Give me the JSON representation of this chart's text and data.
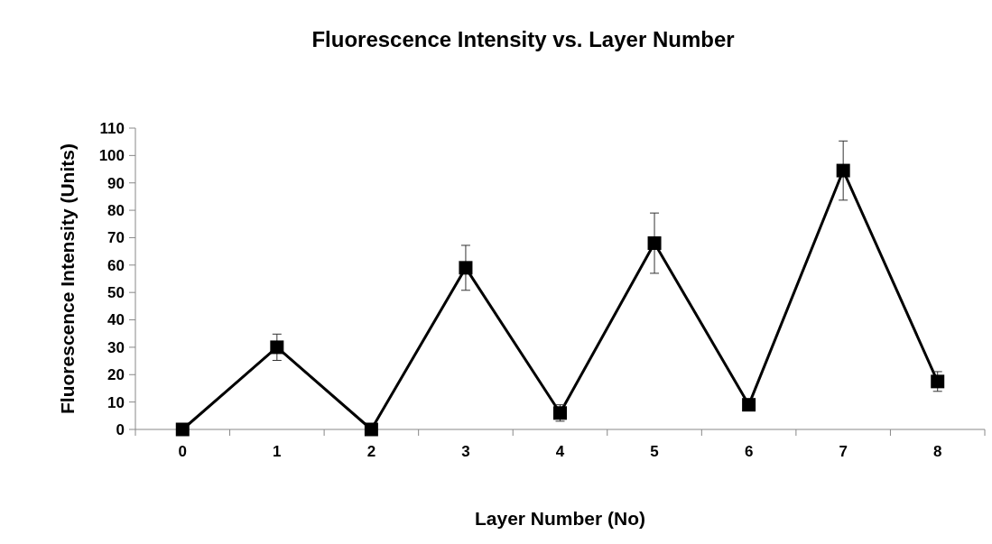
{
  "chart_data": {
    "type": "line",
    "title": "Fluorescence Intensity vs. Layer Number",
    "xlabel": "Layer Number (No)",
    "ylabel": "Fluorescence Intensity (Units)",
    "categories": [
      "0",
      "1",
      "2",
      "3",
      "4",
      "5",
      "6",
      "7",
      "8"
    ],
    "series": [
      {
        "color": "#000000",
        "values": [
          0,
          30,
          0,
          59,
          6,
          68,
          9,
          94.5,
          17.5
        ],
        "errors": [
          null,
          4.8,
          null,
          8.2,
          3,
          11,
          null,
          10.8,
          3.6
        ]
      }
    ],
    "ylim": [
      0,
      110
    ],
    "yticks": [
      0,
      10,
      20,
      30,
      40,
      50,
      60,
      70,
      80,
      90,
      100,
      110
    ],
    "marker": "square",
    "line_style": "solid",
    "grid": false
  }
}
